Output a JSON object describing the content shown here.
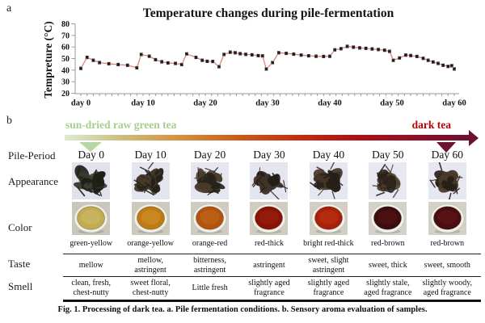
{
  "panel_a": {
    "label": "a",
    "title": "Temperature changes during pile-fermentation",
    "y_axis_label": "Tempreture (°C)"
  },
  "chart_data": {
    "type": "line",
    "title": "Temperature changes during pile-fermentation",
    "xlabel": "",
    "ylabel": "Tempreture (°C)",
    "ylim": [
      20,
      80
    ],
    "y_ticks": [
      20,
      30,
      40,
      50,
      60,
      70,
      80
    ],
    "xlim": [
      0,
      61
    ],
    "x_tick_positions": [
      0,
      10,
      20,
      30,
      40,
      50,
      60
    ],
    "x_tick_labels": [
      "day 0",
      "day 10",
      "day 20",
      "day 30",
      "day 40",
      "day 50",
      "day 60"
    ],
    "x": [
      0,
      1,
      2,
      3,
      4.5,
      6,
      7.5,
      9,
      9.7,
      11,
      12,
      13,
      14,
      15.2,
      16.2,
      17,
      18.5,
      19.5,
      20.3,
      21.2,
      22.2,
      23,
      24,
      24.8,
      25.6,
      26.5,
      27.5,
      28.5,
      29.2,
      29.8,
      30.8,
      31.8,
      33,
      34.2,
      35.4,
      36.6,
      37.8,
      39,
      40,
      40.8,
      41.8,
      42.8,
      43.8,
      44.8,
      45.8,
      46.8,
      47.8,
      48.8,
      49.6,
      50.2,
      51.2,
      52.2,
      53,
      54,
      55,
      55.8,
      56.6,
      57.4,
      58.2,
      59,
      59.6,
      60
    ],
    "y": [
      41.5,
      51,
      48.5,
      46.5,
      45.5,
      44.8,
      44.2,
      42,
      53.5,
      52,
      49,
      47.2,
      46.2,
      45.8,
      44.8,
      54,
      51,
      48.5,
      47.6,
      47.5,
      43,
      53.5,
      55.5,
      55,
      54.2,
      53.6,
      53.2,
      52.5,
      52.3,
      41,
      46.5,
      55,
      54.5,
      53.8,
      53,
      52.4,
      52,
      51.8,
      52,
      57.5,
      58.5,
      60.5,
      59.8,
      59.2,
      58.8,
      58.3,
      57.8,
      57.2,
      56.2,
      48.5,
      50.5,
      53,
      52.6,
      51.8,
      50.2,
      48.5,
      47,
      45.8,
      44.2,
      43.2,
      43.8,
      41
    ],
    "error": 1.2,
    "line_color": "#e0837d",
    "marker_color": "#1c1c1c",
    "errorbar_color": "#2a2a2a",
    "axis_color": "#9a9a9a",
    "legend": [],
    "grid": false
  },
  "panel_b": {
    "label": "b",
    "arrow": {
      "start_label": "sun-dried raw green tea",
      "start_label_color": "#a6ce8e",
      "end_label": "dark tea",
      "end_label_color": "#c00000",
      "gradient": [
        "#dcead2",
        "#cdbd7a",
        "#d78f3f",
        "#c95c1a",
        "#c03010",
        "#ad0f14",
        "#8f0f26",
        "#6d1130"
      ],
      "start_marker_color": "#b7d6a3",
      "end_marker_color": "#6d1130"
    },
    "row_labels": {
      "period": "Pile-Period",
      "appearance": "Appearance",
      "color": "Color",
      "taste": "Taste",
      "smell": "Smell"
    },
    "samples": [
      {
        "day": "Day 0",
        "liquor_name": "green-yellow",
        "taste": "mellow",
        "smell": "clean, fresh, chest-nutty",
        "leaf": {
          "bg": "#e2e2ec",
          "dark": "#1e2018",
          "mid": "#3a3c30"
        },
        "cup": {
          "bg": "#c9c6ba",
          "bowl": "#efeee6",
          "liquor": "#c2ab4e",
          "liquor_light": "#cdbd70"
        }
      },
      {
        "day": "Day 10",
        "liquor_name": "orange-yellow",
        "taste": "mellow, astringent",
        "smell": "sweet floral, chest-nutty",
        "leaf": {
          "bg": "#e5e5ef",
          "dark": "#252119",
          "mid": "#45382a"
        },
        "cup": {
          "bg": "#cdc9bd",
          "bowl": "#f0efe8",
          "liquor": "#bf7a12",
          "liquor_light": "#cf9330"
        }
      },
      {
        "day": "Day 20",
        "liquor_name": "orange-red",
        "taste": "bitterness, astringent",
        "smell": "Little fresh",
        "leaf": {
          "bg": "#e6e6f0",
          "dark": "#26221a",
          "mid": "#4a3c2c"
        },
        "cup": {
          "bg": "#cfcbc0",
          "bowl": "#f0efe8",
          "liquor": "#b25410",
          "liquor_light": "#c06a1c"
        }
      },
      {
        "day": "Day 30",
        "liquor_name": "red-thick",
        "taste": "astringent",
        "smell": "slightly aged fragrance",
        "leaf": {
          "bg": "#e5e5ef",
          "dark": "#231d17",
          "mid": "#41332a"
        },
        "cup": {
          "bg": "#d0ccc1",
          "bowl": "#f1f0e9",
          "liquor": "#8a1306",
          "liquor_light": "#9c2410"
        }
      },
      {
        "day": "Day 40",
        "liquor_name": "bright red-thick",
        "taste": "sweet, slight astringent",
        "smell": "slightly aged fragrance",
        "leaf": {
          "bg": "#e6e6f0",
          "dark": "#251f18",
          "mid": "#463528"
        },
        "cup": {
          "bg": "#d2cec3",
          "bowl": "#f1f0e9",
          "liquor": "#a82008",
          "liquor_light": "#c03518"
        }
      },
      {
        "day": "Day 50",
        "liquor_name": "red-brown",
        "taste": "sweet, thick",
        "smell": "slightly stale, aged fragrance",
        "leaf": {
          "bg": "#e8e8f2",
          "dark": "#2a221b",
          "mid": "#50402f"
        },
        "cup": {
          "bg": "#d4d1c8",
          "bowl": "#f2f1ea",
          "liquor": "#3c0d0e",
          "liquor_light": "#5a1515"
        }
      },
      {
        "day": "Day 60",
        "liquor_name": "red-brown",
        "taste": "sweet, smooth",
        "smell": "slightly woody, aged fragrance",
        "leaf": {
          "bg": "#e7e7f1",
          "dark": "#281f19",
          "mid": "#4b3a2b"
        },
        "cup": {
          "bg": "#d3d0c7",
          "bowl": "#f1f0e9",
          "liquor": "#4a0e12",
          "liquor_light": "#661418"
        }
      }
    ],
    "caption_prefix": "Fig. 1.",
    "caption_text": "Processing of dark tea. a. Pile fermentation conditions. b. Sensory aroma evaluation of samples."
  }
}
